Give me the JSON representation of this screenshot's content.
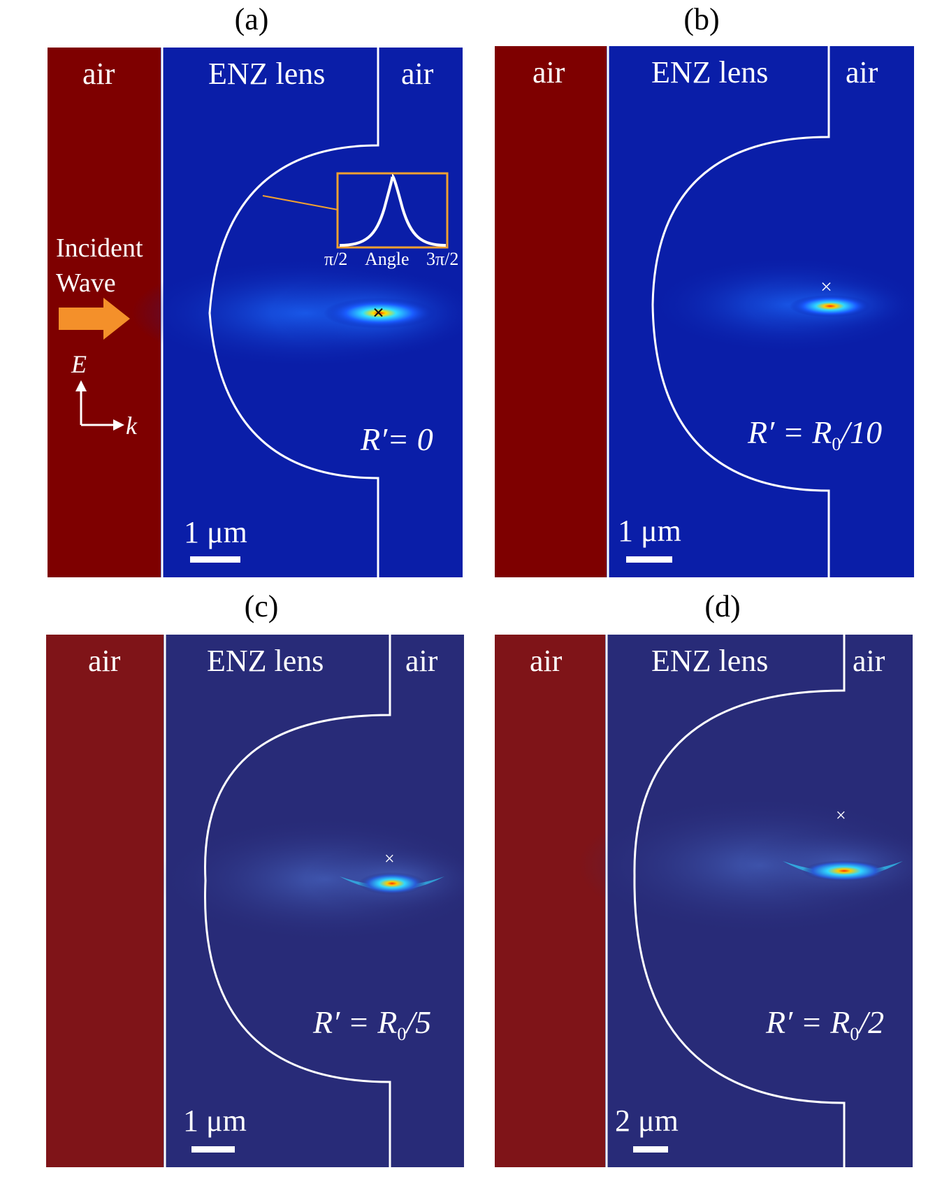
{
  "panels": [
    {
      "label": "(a)",
      "regions": {
        "left": "air",
        "lens": "ENZ lens",
        "right": "air"
      },
      "r_label": {
        "main": "R′= 0",
        "sub": "",
        "suffix": ""
      },
      "scale": "1 μm",
      "incident": {
        "line1": "Incident",
        "line2": "Wave"
      },
      "axes": {
        "e": "E",
        "k": "k"
      },
      "inset": {
        "left": "π/2",
        "mid": "Angle",
        "right": "3π/2"
      },
      "marker": "×"
    },
    {
      "label": "(b)",
      "regions": {
        "left": "air",
        "lens": "ENZ lens",
        "right": "air"
      },
      "r_label": {
        "main": "R′ = R",
        "sub": "0",
        "suffix": "/10"
      },
      "scale": "1 μm",
      "marker": "×"
    },
    {
      "label": "(c)",
      "regions": {
        "left": "air",
        "lens": "ENZ lens",
        "right": "air"
      },
      "r_label": {
        "main": "R′ = R",
        "sub": "0",
        "suffix": "/5"
      },
      "scale": "1 μm",
      "marker": "×"
    },
    {
      "label": "(d)",
      "regions": {
        "left": "air",
        "lens": "ENZ lens",
        "right": "air"
      },
      "r_label": {
        "main": "R′ = R",
        "sub": "0",
        "suffix": "/2"
      },
      "scale": "2 μm",
      "marker": "×"
    }
  ],
  "colors": {
    "air": "#7e0000",
    "air_muted": "#7f1418",
    "lens": "#0a1ea8",
    "lens_muted": "#282b78"
  }
}
